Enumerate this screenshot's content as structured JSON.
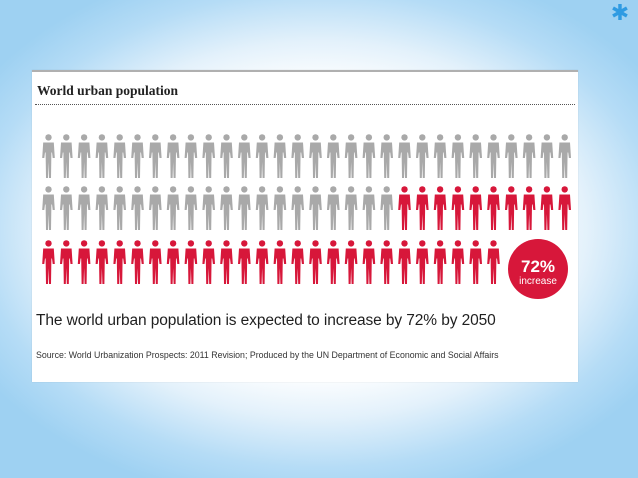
{
  "slide": {
    "corner_icon": "star-icon",
    "accent_color": "#2f9be2"
  },
  "chart_data": {
    "type": "pictogram",
    "title": "World urban population",
    "rows": 3,
    "icons_per_row": 30,
    "gray_icons": 50,
    "red_icons": 36,
    "colors": {
      "gray": "#a9a9a9",
      "red": "#d7173a"
    },
    "badge": {
      "value": "72%",
      "label": "increase"
    },
    "caption": "The world urban population is expected to increase by 72% by 2050",
    "source": "Source: World Urbanization Prospects: 2011 Revision; Produced by the UN Department of Economic and Social Affairs"
  }
}
